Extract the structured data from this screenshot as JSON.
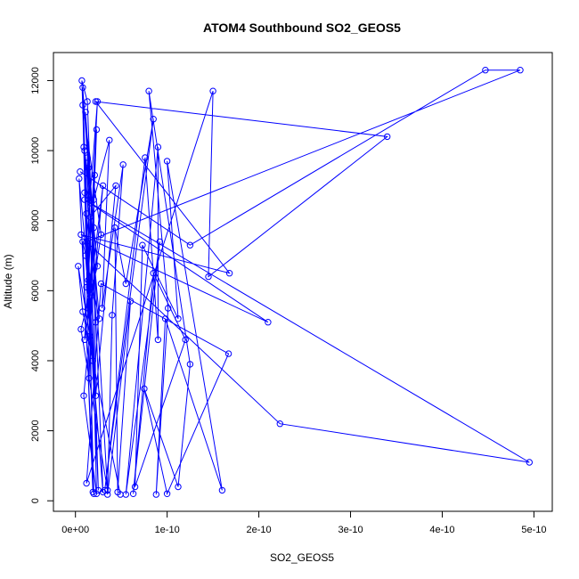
{
  "chart_data": {
    "type": "line",
    "title": "ATOM4 Southbound SO2_GEOS5",
    "xlabel": "SO2_GEOS5",
    "ylabel": "Altitude (m)",
    "xlim": [
      -2.4e-11,
      5.2e-10
    ],
    "ylim": [
      -300,
      12800
    ],
    "xticks": [
      0,
      1e-10,
      2e-10,
      3e-10,
      4e-10,
      5e-10
    ],
    "xtick_labels": [
      "0e+00",
      "1e-10",
      "2e-10",
      "3e-10",
      "4e-10",
      "5e-10"
    ],
    "yticks": [
      0,
      2000,
      4000,
      6000,
      8000,
      10000,
      12000
    ],
    "ytick_labels": [
      "0",
      "2000",
      "4000",
      "6000",
      "8000",
      "10000",
      "12000"
    ],
    "grid": false,
    "marker": "open-circle",
    "series": [
      {
        "color": "#0000ff",
        "points": [
          [
            4.9e-11,
            180
          ],
          [
            8e-12,
            5400
          ],
          [
            3e-12,
            6700
          ],
          [
            1.6e-11,
            4700
          ],
          [
            8e-12,
            11800
          ],
          [
            1.4e-11,
            9500
          ],
          [
            2.5e-11,
            300
          ],
          [
            1e-11,
            8800
          ],
          [
            1.5e-11,
            5600
          ],
          [
            7e-12,
            12000
          ],
          [
            1.3e-11,
            11400
          ],
          [
            2.2e-11,
            5100
          ],
          [
            9e-12,
            10100
          ],
          [
            1.4e-11,
            6300
          ],
          [
            2.4e-11,
            11400
          ],
          [
            1.1e-11,
            7000
          ],
          [
            1.9e-11,
            4000
          ],
          [
            1.2e-11,
            8200
          ],
          [
            2e-11,
            200
          ],
          [
            4e-12,
            9200
          ],
          [
            1.6e-11,
            5800
          ],
          [
            2.3e-11,
            10600
          ],
          [
            1e-11,
            4600
          ],
          [
            2.8e-11,
            7600
          ],
          [
            8e-12,
            11300
          ],
          [
            1.5e-11,
            3500
          ],
          [
            2.1e-11,
            9300
          ],
          [
            1.2e-11,
            6100
          ],
          [
            3e-11,
            250
          ],
          [
            1.7e-11,
            8500
          ],
          [
            1e-11,
            10000
          ],
          [
            2.6e-11,
            5200
          ],
          [
            8e-12,
            7400
          ],
          [
            1.9e-11,
            250
          ],
          [
            1.3e-11,
            9800
          ],
          [
            2.4e-11,
            6700
          ],
          [
            6e-12,
            4900
          ],
          [
            3.5e-11,
            300
          ],
          [
            1.1e-11,
            11100
          ],
          [
            2e-11,
            7800
          ],
          [
            1.4e-11,
            5500
          ],
          [
            3e-11,
            9000
          ],
          [
            9e-12,
            3000
          ],
          [
            2.3e-11,
            200
          ],
          [
            1.6e-11,
            8100
          ],
          [
            4.4e-11,
            9000
          ],
          [
            2.2e-11,
            3000
          ],
          [
            2e-11,
            8600
          ],
          [
            3.7e-11,
            10300
          ],
          [
            2.9e-11,
            5500
          ],
          [
            5.2e-11,
            9600
          ],
          [
            4e-11,
            5300
          ],
          [
            3.5e-11,
            180
          ],
          [
            6e-11,
            5700
          ],
          [
            4.6e-11,
            250
          ],
          [
            4.3e-11,
            7800
          ],
          [
            5.5e-11,
            6200
          ],
          [
            8.5e-11,
            10900
          ],
          [
            3.2e-11,
            300
          ],
          [
            7.6e-11,
            9800
          ],
          [
            9e-11,
            4600
          ],
          [
            9e-11,
            10100
          ],
          [
            5.5e-11,
            180
          ],
          [
            9.2e-11,
            7400
          ],
          [
            6.3e-11,
            200
          ],
          [
            8.5e-11,
            6500
          ],
          [
            1.2e-10,
            4600
          ],
          [
            6.5e-11,
            400
          ],
          [
            7.3e-11,
            7300
          ],
          [
            1.12e-10,
            5200
          ],
          [
            1e-10,
            9700
          ],
          [
            1.6e-10,
            300
          ],
          [
            9.8e-11,
            5200
          ],
          [
            8.8e-11,
            180
          ],
          [
            1.01e-10,
            5500
          ],
          [
            8e-11,
            11700
          ],
          [
            1.25e-10,
            3900
          ],
          [
            1.12e-10,
            400
          ],
          [
            7.5e-11,
            3200
          ],
          [
            1e-10,
            200
          ],
          [
            1.67e-10,
            4200
          ],
          [
            2.8e-11,
            6200
          ],
          [
            1.2e-11,
            500
          ],
          [
            1.5e-10,
            11700
          ],
          [
            1.45e-10,
            6400
          ],
          [
            3.4e-10,
            10400
          ],
          [
            2.2e-11,
            11400
          ],
          [
            1.68e-10,
            6500
          ],
          [
            6e-12,
            7600
          ],
          [
            2.1e-10,
            5100
          ],
          [
            1e-11,
            8600
          ],
          [
            4.95e-10,
            1100
          ],
          [
            2.23e-10,
            2200
          ],
          [
            1.2e-11,
            7400
          ],
          [
            4.85e-10,
            12300
          ],
          [
            4.47e-10,
            12300
          ],
          [
            1.25e-10,
            7300
          ],
          [
            5e-12,
            9400
          ]
        ]
      }
    ]
  }
}
